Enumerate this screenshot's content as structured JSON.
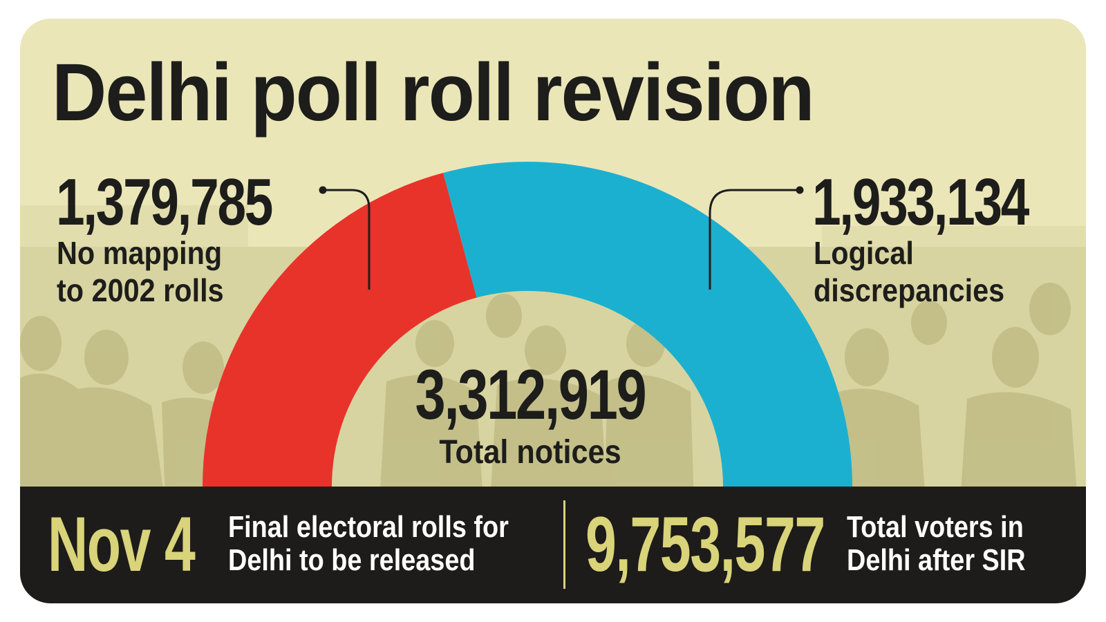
{
  "title": "Delhi poll roll revision",
  "colors": {
    "background": "#ebe6b8",
    "red_segment": "#e8332a",
    "blue_segment": "#1cb0d0",
    "footer_bg": "#1d1c1a",
    "footer_accent": "#d9d37a",
    "text_dark": "#1d1d1b"
  },
  "chart_data": {
    "type": "pie",
    "variant": "half-donut",
    "categories": [
      "No mapping to 2002 rolls",
      "Logical discrepancies"
    ],
    "values": [
      1379785,
      1933134
    ],
    "value_labels": [
      "1,379,785",
      "1,933,134"
    ],
    "label_lines": [
      [
        "No mapping",
        "to 2002 rolls"
      ],
      [
        "Logical",
        "discrepancies"
      ]
    ],
    "colors": [
      "#e8332a",
      "#1cb0d0"
    ],
    "total": 3312919,
    "total_label": "3,312,919",
    "total_caption": "Total notices"
  },
  "footer": {
    "date": "Nov 4",
    "date_text": [
      "Final electoral rolls for",
      "Delhi to be released"
    ],
    "voters": "9,753,577",
    "voters_text": [
      "Total voters in",
      "Delhi after SIR"
    ]
  }
}
